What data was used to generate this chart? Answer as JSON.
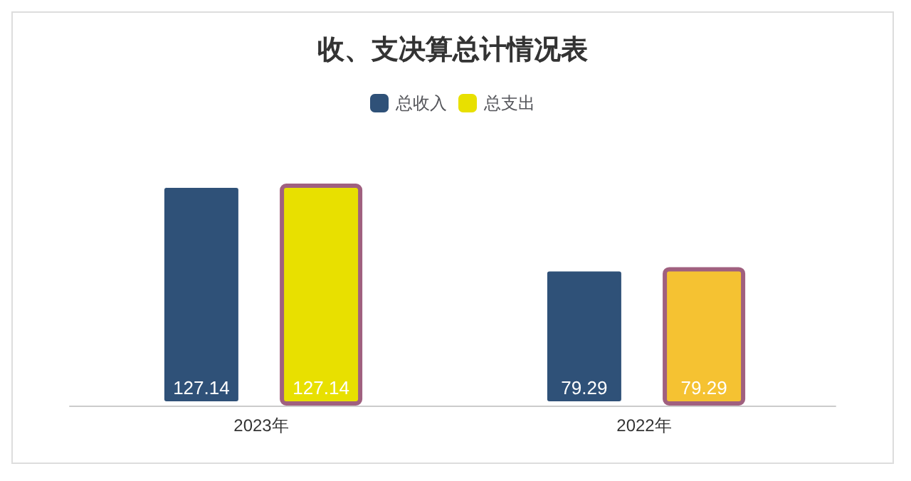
{
  "chart_data": {
    "type": "bar",
    "title": "收、支决算总计情况表",
    "categories": [
      "2023年",
      "2022年"
    ],
    "series": [
      {
        "name": "总收入",
        "color": "#2f5178",
        "values": [
          127.14,
          79.29
        ]
      },
      {
        "name": "总支出",
        "color": "#e8e000",
        "colors": [
          "#e8e000",
          "#f5c232"
        ],
        "values": [
          127.14,
          79.29
        ]
      }
    ],
    "data_labels": true,
    "legend": "top"
  }
}
